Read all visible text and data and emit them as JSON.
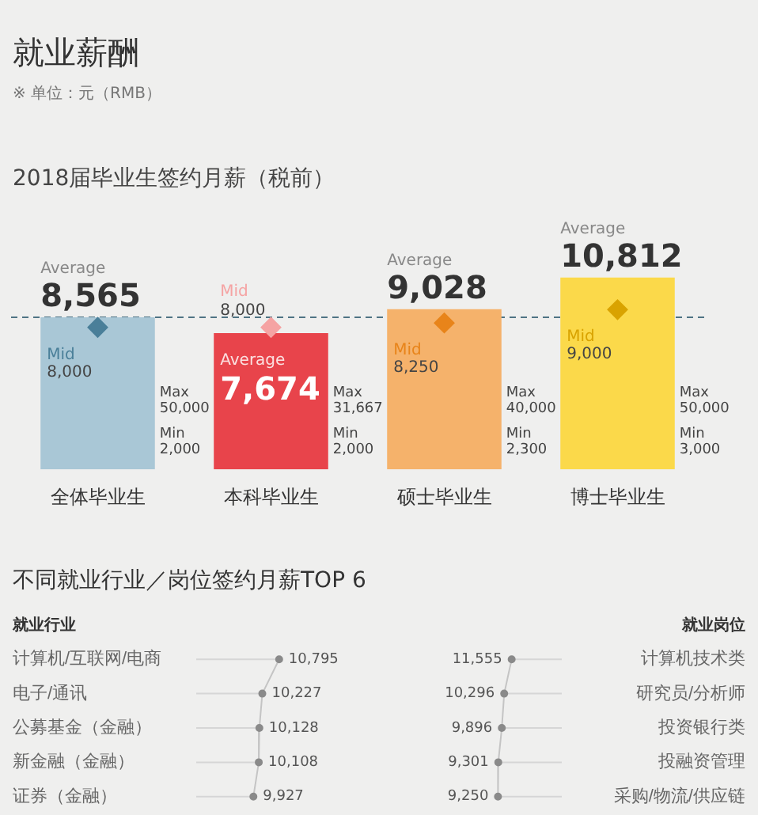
{
  "chart_data": [
    {
      "type": "bar",
      "title": "就业薪酬",
      "subtitle": "2018届毕业生签约月薪（税前）",
      "categories": [
        "全体毕业生",
        "本科毕业生",
        "硕士毕业生",
        "博士毕业生"
      ],
      "series": [
        {
          "name": "Average",
          "type": "bar",
          "colors": [
            "#a9c7d6",
            "#e8444b",
            "#f5b26b",
            "#fbd94a"
          ],
          "values": [
            8565,
            7674,
            9028,
            10812
          ],
          "value_labels": [
            "8,565",
            "7,674",
            "9,028",
            "10,812"
          ]
        },
        {
          "name": "Mid",
          "type": "scatter",
          "colors": [
            "#4a7f99",
            "#f5a3a3",
            "#e8841a",
            "#d9a300"
          ],
          "values": [
            8000,
            8000,
            8250,
            9000
          ],
          "value_labels": [
            "8,000",
            "8,000",
            "8,250",
            "9,000"
          ]
        }
      ],
      "marker": "diamond",
      "legend": false,
      "ref_lines": [
        {
          "axis": "y",
          "value": 8565,
          "color": "#4f7384",
          "line_style": "dashed"
        }
      ],
      "annotations": [
        "※ 单位：元（RMB）",
        "Max 50,000",
        "Min 2,000",
        "Max 31,667",
        "Min 2,000",
        "Max 40,000",
        "Min 2,300",
        "Max 50,000",
        "Min 3,000"
      ]
    },
    {
      "type": "lollipop",
      "title": "不同就业行业／岗位签约月薪TOP 6",
      "ylabel": "就业行业",
      "orientation": "horizontal",
      "categories": [
        "计算机/互联网/电商",
        "电子/通讯",
        "公募基金（金融）",
        "新金融（金融）",
        "证券（金融）"
      ],
      "values": [
        10795,
        10227,
        10128,
        10108,
        9927
      ],
      "value_labels": [
        "10,795",
        "10,227",
        "10,128",
        "10,108",
        "9,927"
      ],
      "color": "#8a8a8a",
      "marker": "circle",
      "grid": "y"
    },
    {
      "type": "lollipop",
      "ylabel": "就业岗位",
      "orientation": "horizontal",
      "categories": [
        "计算机技术类",
        "研究员/分析师",
        "投资银行类",
        "投融资管理",
        "采购/物流/供应链"
      ],
      "values": [
        11555,
        10296,
        9896,
        9301,
        9250
      ],
      "value_labels": [
        "11,555",
        "10,296",
        "9,896",
        "9,301",
        "9,250"
      ],
      "color": "#8a8a8a",
      "marker": "circle",
      "grid": "y"
    }
  ]
}
